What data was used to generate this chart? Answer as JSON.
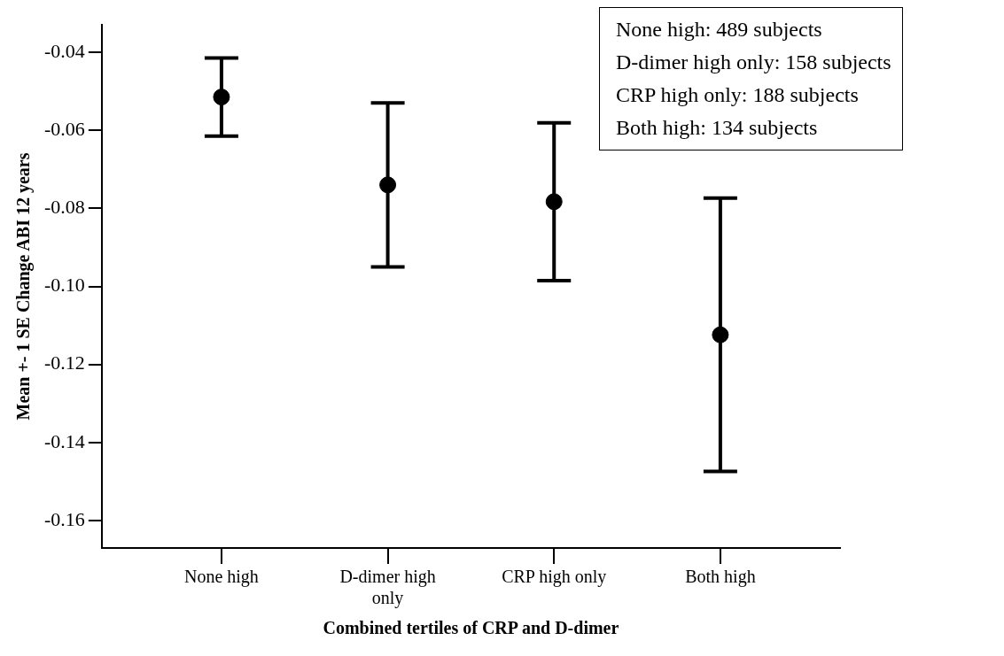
{
  "chart_data": {
    "type": "scatter",
    "xlabel": "Combined tertiles of CRP and D-dimer",
    "ylabel": "Mean +- 1 SE Change ABI 12 years",
    "categories": [
      "None high",
      "D-dimer high only",
      "CRP high only",
      "Both high"
    ],
    "series": [
      {
        "color": "#000000",
        "values": [
          -0.0515,
          -0.074,
          -0.0783,
          -0.1124
        ],
        "errors": [
          0.01,
          0.021,
          0.0202,
          0.035
        ]
      }
    ],
    "ylim": [
      -0.167,
      -0.033
    ],
    "yticks": [
      -0.04,
      -0.06,
      -0.08,
      {
        "value": -0.1,
        "label": "-0.10"
      },
      -0.12,
      -0.14,
      -0.16
    ],
    "grid": false,
    "legend": false,
    "marker": "circle",
    "annotations": [
      "None high: 489 subjects",
      "D-dimer high only: 158 subjects",
      "CRP high only: 188 subjects",
      "Both high: 134 subjects"
    ]
  }
}
